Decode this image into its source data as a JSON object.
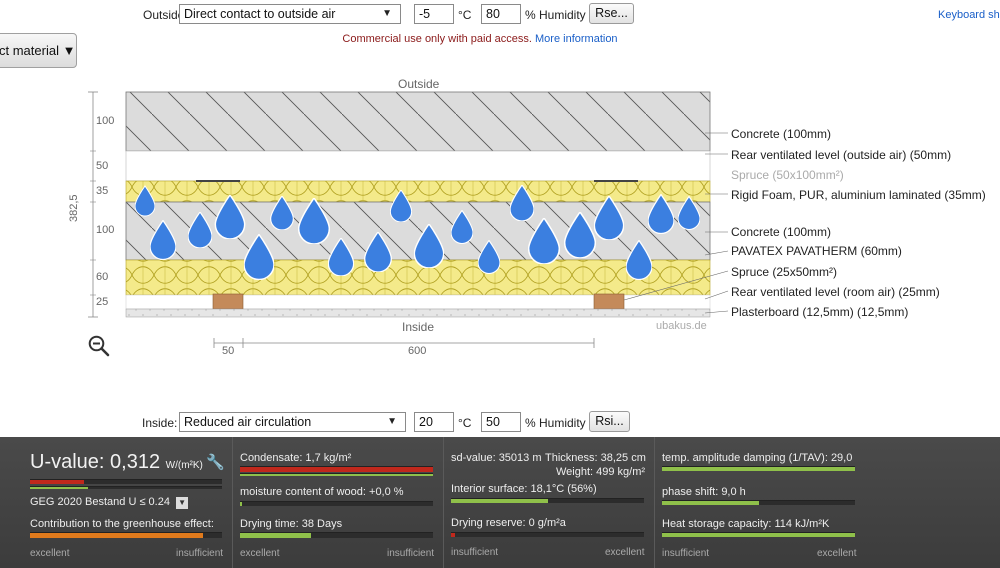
{
  "outside_row": {
    "label": "Outside",
    "select_value": "Direct contact to outside air",
    "temperature": "-5",
    "temp_unit": "°C",
    "humidity": "80",
    "humidity_label": "% Humidity",
    "rse_button": "Rse..."
  },
  "keyboard_link": "Keyboard sh",
  "material_button": "ct material ▼",
  "notice": {
    "text": "Commercial use only with paid access.",
    "link": "More information"
  },
  "diagram": {
    "outside_label": "Outside",
    "inside_label": "Inside",
    "watermark": "ubakus.de",
    "total_thickness": "382,5",
    "thickness_labels": [
      "100",
      "50",
      "35",
      "100",
      "60",
      "25"
    ],
    "bottom_dims": [
      "50",
      "600"
    ],
    "layers": [
      "Concrete (100mm)",
      "Rear ventilated level (outside air) (50mm)",
      "Spruce (50x100mm²)",
      "Rigid Foam, PUR, aluminium laminated (35mm)",
      "Concrete (100mm)",
      "PAVATEX PAVATHERM (60mm)",
      "Spruce (25x50mm²)",
      "Rear ventilated level (room air) (25mm)",
      "Plasterboard (12,5mm) (12,5mm)"
    ]
  },
  "inside_row": {
    "label": "Inside:",
    "select_value": "Reduced air circulation",
    "temperature": "20",
    "temp_unit": "°C",
    "humidity": "50",
    "humidity_label": "% Humidity",
    "rsi_button": "Rsi..."
  },
  "results": {
    "u_label": "U-value:",
    "u_value": "0,312",
    "u_unit": "W/(m²K)",
    "standard": "GEG 2020 Bestand U ≤ 0.24",
    "greenhouse": "Contribution to the greenhouse effect:",
    "condensate": "Condensate: 1,7 kg/m²",
    "moisture": "moisture content of wood: +0,0 %",
    "drying_time": "Drying time: 38 Days",
    "sd_value": "sd-value: 35013 m",
    "thickness": "Thickness: 38,25 cm",
    "weight": "Weight: 499 kg/m²",
    "interior_surface": "Interior surface: 18,1°C (56%)",
    "drying_reserve": "Drying reserve: 0 g/m²a",
    "temp_amplitude": "temp. amplitude damping (1/TAV): 29,0",
    "phase_shift": "phase shift: 9,0 h",
    "heat_storage": "Heat storage capacity: 114 kJ/m²K",
    "excellent": "excellent",
    "insufficient": "insufficient",
    "bars": {
      "u_value": 0.28,
      "greenhouse": 0.9,
      "condensate": 1.0,
      "moisture": 0.01,
      "drying_time": 0.37,
      "interior_surface": 0.5,
      "drying_reserve": 0.02,
      "temp_amplitude": 1.0,
      "phase_shift": 0.5,
      "heat_storage": 1.0
    },
    "colors": {
      "red": "#c0281c",
      "green": "#8fc04a",
      "orange": "#e07a1c"
    }
  }
}
